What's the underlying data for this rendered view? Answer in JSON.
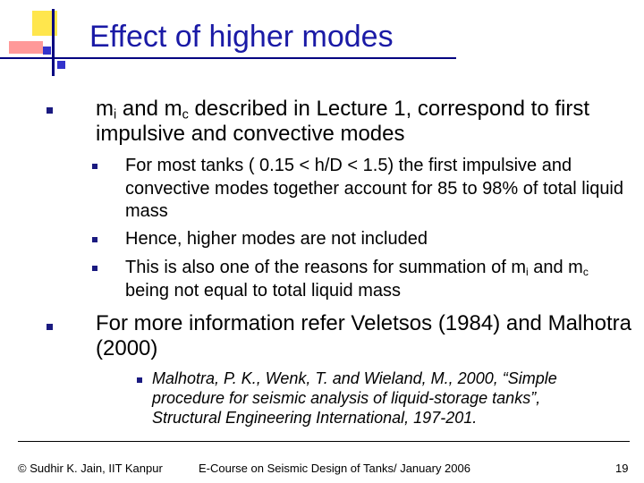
{
  "title": "Effect of higher modes",
  "bullets": [
    {
      "text": [
        "m",
        "i",
        " and m",
        "c",
        " described in Lecture 1, correspond to first impulsive and convective modes"
      ],
      "sub": [
        [
          "For most tanks ( 0.15 < h/D < 1.5) the first impulsive and convective modes together account for 85 to 98% of total liquid mass"
        ],
        [
          "Hence, higher modes are not included"
        ],
        [
          "This is also one of  the reasons for summation of m",
          "i",
          " and m",
          "c",
          " being not equal to total liquid mass"
        ]
      ]
    },
    {
      "text": [
        "For more information refer Veletsos (1984) and Malhotra (2000)"
      ],
      "sub": [
        [
          "Malhotra, P. K., Wenk, T. and Wieland, M., 2000, “Simple procedure for seismic analysis of liquid-storage tanks”, Structural Engineering International, 197-201."
        ]
      ]
    }
  ],
  "footer": {
    "left": "© Sudhir K. Jain, IIT Kanpur",
    "center": "E-Course on Seismic Design of Tanks/ January 2006",
    "page": 19
  }
}
